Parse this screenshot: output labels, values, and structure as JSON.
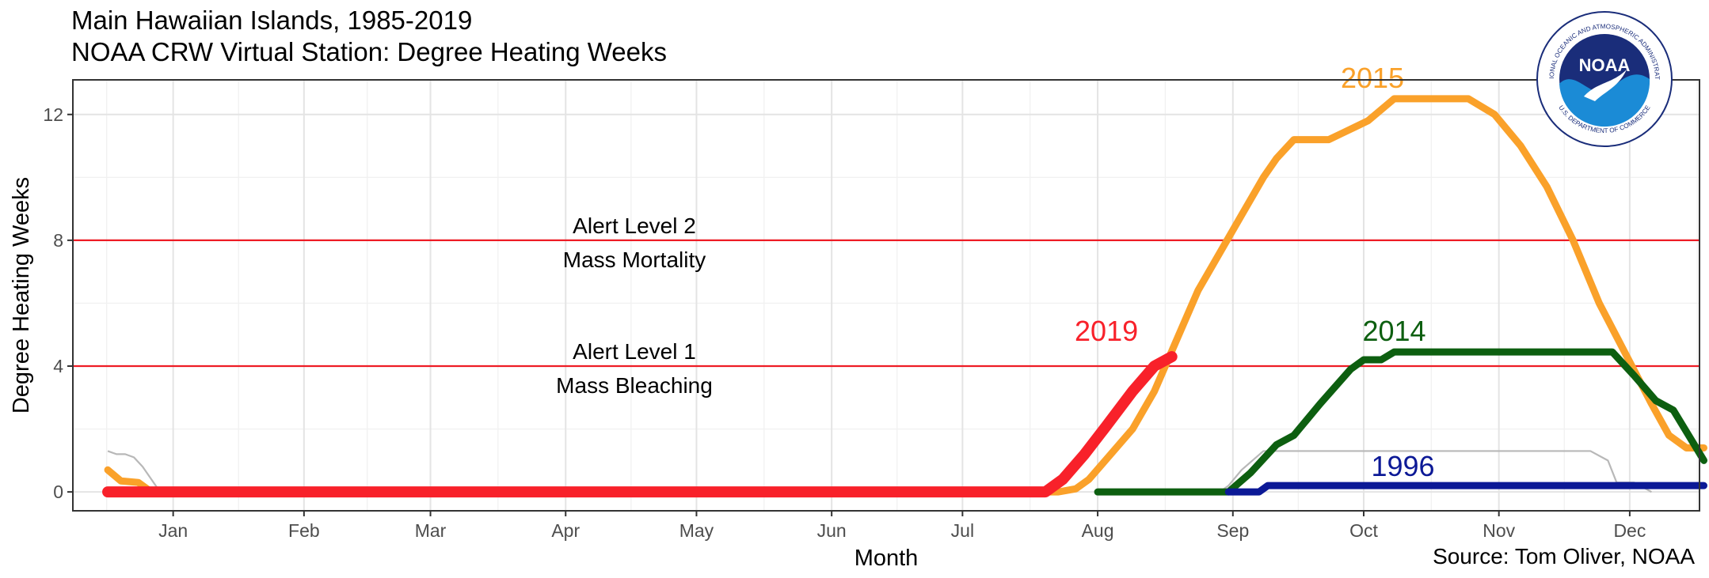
{
  "title_lines": [
    "Main Hawaiian Islands, 1985-2019",
    "NOAA CRW Virtual Station: Degree Heating Weeks"
  ],
  "source": "Source: Tom Oliver, NOAA",
  "logo": {
    "center_text": "NOAA",
    "ring_top": "NATIONAL OCEANIC AND ATMOSPHERIC ADMINISTRATION",
    "ring_bottom": "U.S. DEPARTMENT OF COMMERCE",
    "colors": {
      "dark": "#1a2d7a",
      "light": "#1b8bd6"
    }
  },
  "chart_data": {
    "type": "line",
    "xlabel": "Month",
    "ylabel": "Degree Heating Weeks",
    "x_unit": "day of year",
    "xlim": [
      -8,
      365
    ],
    "ylim": [
      -0.6,
      13.1
    ],
    "grid": true,
    "x_ticks": [
      {
        "label": "Jan",
        "day": 15
      },
      {
        "label": "Feb",
        "day": 45
      },
      {
        "label": "Mar",
        "day": 74
      },
      {
        "label": "Apr",
        "day": 105
      },
      {
        "label": "May",
        "day": 135
      },
      {
        "label": "Jun",
        "day": 166
      },
      {
        "label": "Jul",
        "day": 196
      },
      {
        "label": "Aug",
        "day": 227
      },
      {
        "label": "Sep",
        "day": 258
      },
      {
        "label": "Oct",
        "day": 288
      },
      {
        "label": "Nov",
        "day": 319
      },
      {
        "label": "Dec",
        "day": 349
      }
    ],
    "y_ticks": [
      0,
      4,
      8,
      12
    ],
    "thresholds": [
      {
        "value": 8,
        "label_top": "Alert Level 2",
        "label_bottom": "Mass Mortality",
        "color": "#ee1c25"
      },
      {
        "value": 4,
        "label_top": "Alert Level 1",
        "label_bottom": "Mass Bleaching",
        "color": "#ee1c25"
      }
    ],
    "background_series": {
      "color": "#b8b8b8"
    },
    "series": [
      {
        "name": "2015",
        "color": "#faa12a",
        "points": [
          [
            0,
            0.7
          ],
          [
            3,
            0.35
          ],
          [
            7,
            0.3
          ],
          [
            8,
            0.2
          ],
          [
            10,
            0
          ],
          [
            180,
            0
          ],
          [
            218,
            0
          ],
          [
            222,
            0.1
          ],
          [
            225,
            0.4
          ],
          [
            230,
            1.2
          ],
          [
            235,
            2.0
          ],
          [
            240,
            3.2
          ],
          [
            245,
            4.8
          ],
          [
            250,
            6.4
          ],
          [
            255,
            7.6
          ],
          [
            260,
            8.8
          ],
          [
            265,
            10.0
          ],
          [
            268,
            10.6
          ],
          [
            272,
            11.2
          ],
          [
            280,
            11.2
          ],
          [
            283,
            11.4
          ],
          [
            286,
            11.6
          ],
          [
            289,
            11.8
          ],
          [
            295,
            12.5
          ],
          [
            312,
            12.5
          ],
          [
            318,
            12.0
          ],
          [
            324,
            11.0
          ],
          [
            330,
            9.7
          ],
          [
            336,
            8.0
          ],
          [
            342,
            6.0
          ],
          [
            348,
            4.4
          ],
          [
            354,
            2.8
          ],
          [
            358,
            1.8
          ],
          [
            362,
            1.4
          ],
          [
            366,
            1.4
          ]
        ]
      },
      {
        "name": "2014",
        "color": "#0d5f10",
        "points": [
          [
            227,
            0
          ],
          [
            257,
            0
          ],
          [
            262,
            0.6
          ],
          [
            268,
            1.5
          ],
          [
            272,
            1.8
          ],
          [
            278,
            2.8
          ],
          [
            285,
            3.9
          ],
          [
            288,
            4.2
          ],
          [
            292,
            4.2
          ],
          [
            295,
            4.45
          ],
          [
            345,
            4.45
          ],
          [
            350,
            3.7
          ],
          [
            355,
            2.9
          ],
          [
            359,
            2.6
          ],
          [
            366,
            1.0
          ]
        ]
      },
      {
        "name": "1996",
        "color": "#0c1996",
        "points": [
          [
            257,
            0
          ],
          [
            264,
            0
          ],
          [
            266,
            0.2
          ],
          [
            366,
            0.2
          ]
        ]
      },
      {
        "name": "2019",
        "color": "#f8212a",
        "points": [
          [
            0,
            0
          ],
          [
            215,
            0
          ],
          [
            219,
            0.4
          ],
          [
            224,
            1.2
          ],
          [
            229,
            2.1
          ],
          [
            235,
            3.2
          ],
          [
            240,
            4.0
          ],
          [
            244,
            4.3
          ]
        ]
      }
    ],
    "background_lines": [
      [
        [
          0,
          1.3
        ],
        [
          2,
          1.2
        ],
        [
          4,
          1.2
        ],
        [
          6,
          1.1
        ],
        [
          8,
          0.8
        ],
        [
          12,
          0
        ]
      ],
      [
        [
          255,
          0
        ],
        [
          257,
          0.2
        ],
        [
          260,
          0.7
        ],
        [
          265,
          1.3
        ],
        [
          340,
          1.3
        ],
        [
          344,
          1.0
        ],
        [
          346,
          0.3
        ],
        [
          350,
          0.3
        ],
        [
          354,
          0
        ]
      ]
    ]
  }
}
